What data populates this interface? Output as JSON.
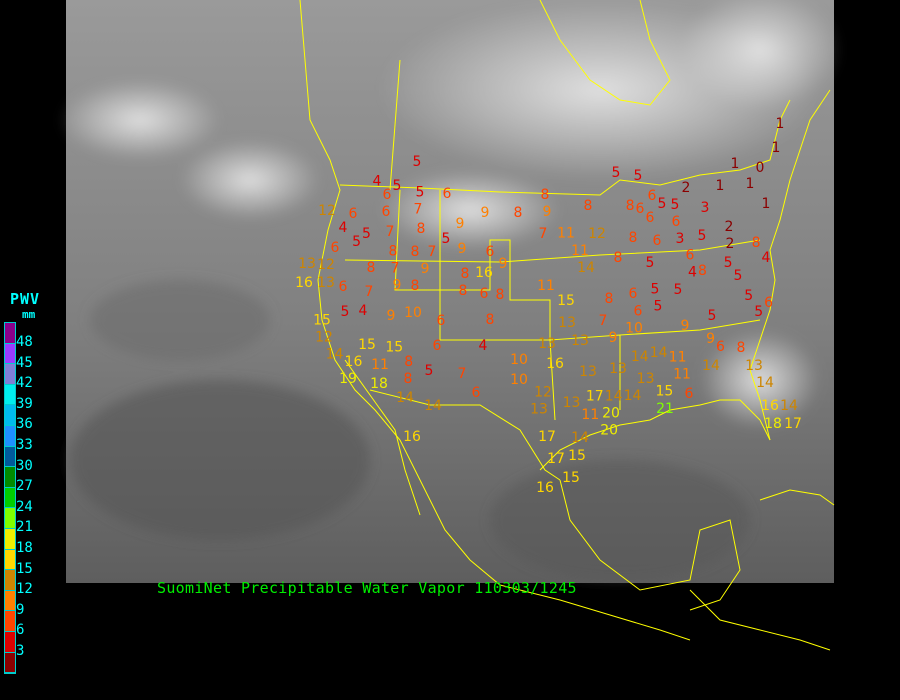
{
  "legend": {
    "title": "PWV",
    "unit": "mm",
    "ticks": [
      "48",
      "45",
      "42",
      "39",
      "36",
      "33",
      "30",
      "27",
      "24",
      "21",
      "18",
      "15",
      "12",
      "9",
      "6",
      "3"
    ],
    "colors": [
      "#8b008b",
      "#9a3cff",
      "#7f7fd6",
      "#00eeee",
      "#00bbee",
      "#1e90ff",
      "#005a9c",
      "#008b00",
      "#00cd00",
      "#7fff00",
      "#eeee00",
      "#ffd700",
      "#cd8500",
      "#ff8000",
      "#ff4500",
      "#dd0000",
      "#8b0000"
    ]
  },
  "caption": "SuomiNet Precipitable Water Vapor 110303/1245",
  "boundary_color": "#ffff00",
  "stations": {
    "values": [
      5,
      4,
      5,
      5,
      6,
      6,
      7,
      6,
      12,
      6,
      4,
      5,
      5,
      7,
      8,
      6,
      8,
      8,
      7,
      5,
      9,
      9,
      6,
      9,
      8,
      9,
      8,
      7,
      11,
      12,
      13,
      12,
      8,
      7,
      9,
      8,
      16,
      9,
      16,
      13,
      6,
      7,
      9,
      8,
      8,
      6,
      8,
      11,
      15,
      5,
      4,
      9,
      10,
      6,
      8,
      13,
      7,
      15,
      12,
      15,
      15,
      6,
      4,
      13,
      13,
      9,
      10,
      14,
      11,
      8,
      19,
      16,
      18,
      8,
      5,
      7,
      10,
      16,
      13,
      13,
      14,
      14,
      14,
      14,
      6,
      10,
      12,
      13,
      17,
      14,
      14,
      13,
      13,
      11,
      20,
      20,
      15,
      21,
      6,
      16,
      17,
      14,
      17,
      15,
      15,
      16,
      5,
      5,
      2,
      1,
      1,
      0,
      1,
      1,
      1,
      1,
      6,
      6,
      8,
      8,
      5,
      6,
      5,
      3,
      2,
      6,
      3,
      5,
      2,
      8,
      4,
      8,
      6,
      11,
      8,
      14,
      5,
      6,
      8,
      5,
      5,
      8,
      6,
      5,
      5,
      4,
      6,
      5,
      5,
      5,
      6,
      5,
      9,
      9,
      6,
      8,
      11,
      11,
      14,
      13,
      14,
      16,
      18,
      17,
      14
    ]
  }
}
